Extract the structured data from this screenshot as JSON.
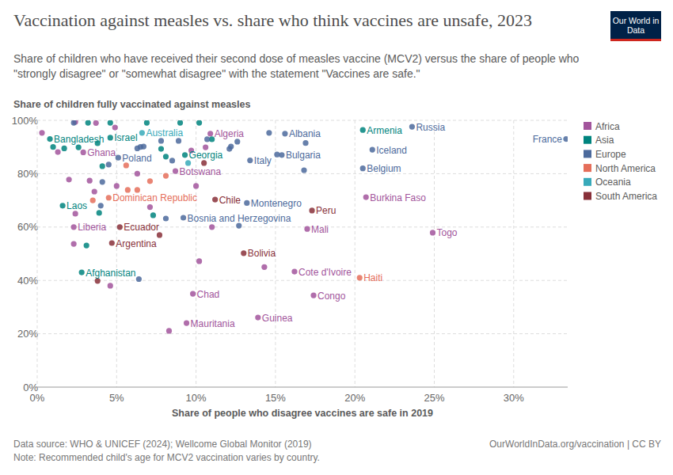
{
  "chart_data": {
    "type": "scatter",
    "title": "Vaccination against measles vs. share who think vaccines are unsafe, 2023",
    "subtitle": "Share of children who have received their second dose of measles vaccine (MCV2) versus the share of people who \"strongly disagree\" or \"somewhat disagree\" with the statement \"Vaccines are safe.\"",
    "y_label": "Share of children fully vaccinated against measles",
    "x_label": "Share of people who disagree vaccines are safe in 2019",
    "source": "Data source: WHO & UNICEF (2024); Wellcome Global Monitor (2019)",
    "credit": "OurWorldInData.org/vaccination | CC BY",
    "note": "Note: Recommended child's age for MCV2 vaccination varies by country.",
    "logo": "Our World in Data",
    "xlim": [
      0,
      33.4
    ],
    "ylim": [
      0,
      100
    ],
    "xticks": [
      {
        "value": 0,
        "label": "0%"
      },
      {
        "value": 5,
        "label": "5%"
      },
      {
        "value": 10,
        "label": "10%"
      },
      {
        "value": 15,
        "label": "15%"
      },
      {
        "value": 20,
        "label": "20%"
      },
      {
        "value": 25,
        "label": "25%"
      },
      {
        "value": 30,
        "label": "30%"
      }
    ],
    "yticks": [
      {
        "value": 0,
        "label": "0%"
      },
      {
        "value": 20,
        "label": "20%"
      },
      {
        "value": 40,
        "label": "40%"
      },
      {
        "value": 60,
        "label": "60%"
      },
      {
        "value": 80,
        "label": "80%"
      },
      {
        "value": 100,
        "label": "100%"
      }
    ],
    "grid": true,
    "legend": "right",
    "marker": "circle",
    "series": [
      {
        "name": "Africa",
        "color": "#a2559c",
        "x": [
          10.9,
          2.9,
          8.7,
          2.3,
          20.7,
          17.0,
          24.9,
          16.2,
          17.4,
          9.8,
          13.9,
          9.4,
          0.3,
          1.3,
          4.9,
          3.7,
          2.4,
          2.0,
          3.3,
          3.6,
          2.4,
          2.3,
          6.3,
          5.0,
          7.1,
          10.0,
          10.2,
          4.6,
          11.0,
          14.3,
          9.7,
          10.6,
          8.3
        ],
        "values": [
          95.0,
          88.0,
          81.0,
          60.0,
          71.2,
          59.3,
          57.9,
          43.3,
          34.4,
          35.0,
          26.1,
          24.0,
          95.3,
          88.1,
          97.3,
          99.0,
          99.4,
          77.8,
          77.4,
          73.3,
          65.0,
          53.7,
          80.0,
          75.4,
          67.5,
          75.4,
          47.2,
          38.0,
          60.0,
          45.0,
          88.7,
          89.9,
          21.1
        ],
        "labels": [
          "Algeria",
          "Ghana",
          "Botswana",
          "Liberia",
          "Burkina Faso",
          "Mali",
          "Togo",
          "Cote d'Ivoire",
          "Congo",
          "Chad",
          "Guinea",
          "Mauritania",
          null,
          null,
          null,
          null,
          null,
          null,
          null,
          null,
          null,
          null,
          null,
          null,
          null,
          null,
          null,
          null,
          null,
          null,
          null,
          null,
          null
        ]
      },
      {
        "name": "Asia",
        "color": "#00847e",
        "x": [
          0.8,
          4.6,
          9.3,
          1.6,
          2.8,
          20.5,
          1.7,
          3.2,
          4.6,
          6.9,
          9.0,
          10.2,
          2.6,
          3.8,
          4.1,
          7.8,
          8.1,
          11.0,
          3.1,
          7.3,
          3.9,
          1.0
        ],
        "values": [
          93.0,
          93.5,
          87.0,
          68.0,
          43.0,
          96.4,
          89.5,
          99.1,
          99.1,
          99.1,
          99.1,
          99.1,
          89.9,
          91.4,
          82.8,
          89.3,
          86.4,
          92.9,
          53.1,
          64.4,
          65.3,
          90.0
        ],
        "labels": [
          "Bangladesh",
          "Israel",
          "Georgia",
          "Laos",
          "Afghanistan",
          "Armenia",
          null,
          null,
          null,
          null,
          null,
          null,
          null,
          null,
          null,
          null,
          null,
          null,
          null,
          null,
          null,
          null
        ]
      },
      {
        "name": "Europe",
        "color": "#4c6a9c",
        "x": [
          23.6,
          15.6,
          15.4,
          13.4,
          21.1,
          20.5,
          33.3,
          5.1,
          13.2,
          9.2,
          2.3,
          4.5,
          4.1,
          4.0,
          6.5,
          6.7,
          6.3,
          7.8,
          8.9,
          8.5,
          10.7,
          12.2,
          12.1,
          12.6,
          14.6,
          15.1,
          16.9,
          16.8,
          12.7,
          8.1,
          6.4
        ],
        "values": [
          97.6,
          95.0,
          87.0,
          85.0,
          89.0,
          82.0,
          93.0,
          86.0,
          69.0,
          63.5,
          99.1,
          83.4,
          76.9,
          68.0,
          90.0,
          90.2,
          89.5,
          92.3,
          92.3,
          84.9,
          92.9,
          90.2,
          89.3,
          92.0,
          95.3,
          87.2,
          91.5,
          81.3,
          60.5,
          63.2,
          40.5
        ],
        "labels": [
          "Russia",
          "Albania",
          "Bulgaria",
          "Italy",
          "Iceland",
          "Belgium",
          "France",
          "Poland",
          "Montenegro",
          "Bosnia and Herzegovina",
          null,
          null,
          null,
          null,
          null,
          null,
          null,
          null,
          null,
          null,
          null,
          null,
          null,
          null,
          null,
          null,
          null,
          null,
          null,
          null,
          null
        ]
      },
      {
        "name": "North America",
        "color": "#e56e5a",
        "x": [
          4.5,
          20.3,
          5.6,
          7.1,
          8.1,
          5.7,
          6.3,
          3.5
        ],
        "values": [
          71.0,
          41.0,
          83.1,
          77.2,
          79.2,
          73.9,
          73.9,
          70.0
        ],
        "labels": [
          "Dominican Republic",
          "Haiti",
          null,
          null,
          null,
          null,
          null,
          null
        ]
      },
      {
        "name": "Oceania",
        "color": "#38aaba",
        "x": [
          6.6,
          9.5
        ],
        "values": [
          95.3,
          84.0
        ],
        "labels": [
          "Australia",
          null
        ]
      },
      {
        "name": "South America",
        "color": "#883039",
        "x": [
          11.2,
          17.3,
          5.2,
          4.7,
          13.0,
          10.5,
          7.7,
          3.8
        ],
        "values": [
          70.3,
          66.2,
          60.0,
          54.0,
          50.2,
          84.0,
          57.0,
          39.8
        ],
        "labels": [
          "Chile",
          "Peru",
          "Ecuador",
          "Argentina",
          "Bolivia",
          null,
          null,
          null
        ]
      }
    ]
  }
}
